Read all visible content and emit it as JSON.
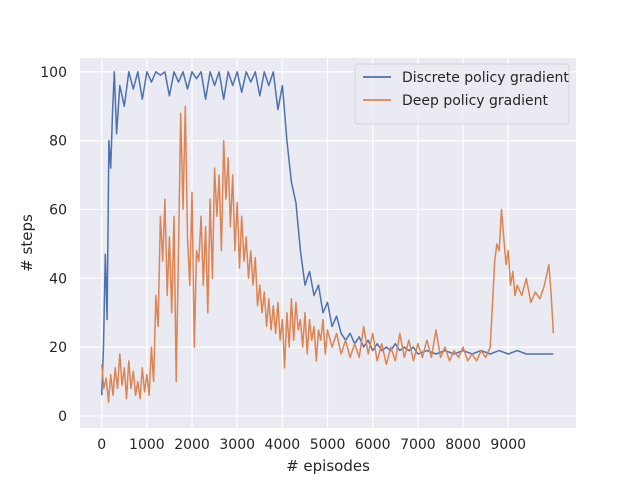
{
  "chart_data": {
    "type": "line",
    "xlabel": "# episodes",
    "ylabel": "# steps",
    "xlim": [
      -480,
      10500
    ],
    "ylim": [
      -3.5,
      104
    ],
    "x_ticks": [
      0,
      1000,
      2000,
      3000,
      4000,
      5000,
      6000,
      7000,
      8000,
      9000
    ],
    "y_ticks": [
      0,
      20,
      40,
      60,
      80,
      100
    ],
    "grid": true,
    "legend_position": "top-right",
    "series": [
      {
        "name": "Discrete policy gradient",
        "color": "#4c72b0",
        "points": [
          [
            0,
            6
          ],
          [
            40,
            20
          ],
          [
            80,
            47
          ],
          [
            120,
            28
          ],
          [
            160,
            80
          ],
          [
            200,
            72
          ],
          [
            240,
            88
          ],
          [
            280,
            100
          ],
          [
            330,
            82
          ],
          [
            400,
            96
          ],
          [
            500,
            90
          ],
          [
            600,
            100
          ],
          [
            700,
            95
          ],
          [
            800,
            100
          ],
          [
            900,
            92
          ],
          [
            1000,
            100
          ],
          [
            1100,
            97
          ],
          [
            1200,
            100
          ],
          [
            1300,
            99
          ],
          [
            1400,
            100
          ],
          [
            1500,
            93
          ],
          [
            1600,
            100
          ],
          [
            1700,
            97
          ],
          [
            1800,
            100
          ],
          [
            1900,
            95
          ],
          [
            2000,
            100
          ],
          [
            2100,
            98
          ],
          [
            2200,
            100
          ],
          [
            2300,
            92
          ],
          [
            2400,
            100
          ],
          [
            2500,
            96
          ],
          [
            2600,
            100
          ],
          [
            2700,
            92
          ],
          [
            2800,
            100
          ],
          [
            2900,
            96
          ],
          [
            3000,
            100
          ],
          [
            3100,
            94
          ],
          [
            3200,
            100
          ],
          [
            3300,
            97
          ],
          [
            3400,
            100
          ],
          [
            3500,
            93
          ],
          [
            3600,
            100
          ],
          [
            3700,
            96
          ],
          [
            3800,
            100
          ],
          [
            3900,
            89
          ],
          [
            4000,
            96
          ],
          [
            4100,
            80
          ],
          [
            4200,
            68
          ],
          [
            4300,
            62
          ],
          [
            4400,
            48
          ],
          [
            4500,
            38
          ],
          [
            4600,
            42
          ],
          [
            4700,
            35
          ],
          [
            4800,
            38
          ],
          [
            4900,
            30
          ],
          [
            5000,
            33
          ],
          [
            5100,
            26
          ],
          [
            5200,
            29
          ],
          [
            5300,
            24
          ],
          [
            5400,
            22
          ],
          [
            5500,
            24
          ],
          [
            5600,
            21
          ],
          [
            5700,
            23
          ],
          [
            5800,
            20
          ],
          [
            5900,
            22
          ],
          [
            6000,
            19
          ],
          [
            6100,
            21
          ],
          [
            6200,
            19
          ],
          [
            6300,
            20
          ],
          [
            6400,
            19
          ],
          [
            6500,
            21
          ],
          [
            6600,
            19
          ],
          [
            6700,
            20
          ],
          [
            6800,
            19
          ],
          [
            6900,
            20
          ],
          [
            7000,
            18
          ],
          [
            7200,
            19
          ],
          [
            7400,
            18
          ],
          [
            7600,
            19
          ],
          [
            7800,
            18
          ],
          [
            8000,
            19
          ],
          [
            8200,
            18
          ],
          [
            8400,
            19
          ],
          [
            8600,
            18
          ],
          [
            8800,
            19
          ],
          [
            9000,
            18
          ],
          [
            9200,
            19
          ],
          [
            9400,
            18
          ],
          [
            9600,
            18
          ],
          [
            9800,
            18
          ],
          [
            10000,
            18
          ]
        ]
      },
      {
        "name": "Deep policy gradient",
        "color": "#dd8452",
        "points": [
          [
            0,
            15
          ],
          [
            50,
            8
          ],
          [
            100,
            11
          ],
          [
            150,
            4
          ],
          [
            200,
            12
          ],
          [
            250,
            6
          ],
          [
            300,
            14
          ],
          [
            350,
            8
          ],
          [
            400,
            18
          ],
          [
            450,
            9
          ],
          [
            500,
            14
          ],
          [
            550,
            5
          ],
          [
            600,
            16
          ],
          [
            650,
            8
          ],
          [
            700,
            13
          ],
          [
            750,
            6
          ],
          [
            800,
            10
          ],
          [
            850,
            5
          ],
          [
            900,
            14
          ],
          [
            950,
            7
          ],
          [
            1000,
            12
          ],
          [
            1050,
            6
          ],
          [
            1100,
            20
          ],
          [
            1150,
            10
          ],
          [
            1200,
            35
          ],
          [
            1250,
            26
          ],
          [
            1300,
            58
          ],
          [
            1350,
            45
          ],
          [
            1400,
            63
          ],
          [
            1450,
            35
          ],
          [
            1500,
            52
          ],
          [
            1550,
            30
          ],
          [
            1600,
            58
          ],
          [
            1650,
            10
          ],
          [
            1700,
            48
          ],
          [
            1750,
            88
          ],
          [
            1800,
            60
          ],
          [
            1850,
            90
          ],
          [
            1900,
            52
          ],
          [
            1950,
            38
          ],
          [
            2000,
            65
          ],
          [
            2050,
            20
          ],
          [
            2100,
            48
          ],
          [
            2150,
            45
          ],
          [
            2200,
            58
          ],
          [
            2250,
            38
          ],
          [
            2300,
            55
          ],
          [
            2350,
            30
          ],
          [
            2400,
            63
          ],
          [
            2450,
            40
          ],
          [
            2500,
            72
          ],
          [
            2550,
            58
          ],
          [
            2600,
            70
          ],
          [
            2650,
            48
          ],
          [
            2700,
            80
          ],
          [
            2750,
            63
          ],
          [
            2800,
            75
          ],
          [
            2850,
            55
          ],
          [
            2900,
            70
          ],
          [
            2950,
            48
          ],
          [
            3000,
            62
          ],
          [
            3050,
            43
          ],
          [
            3100,
            58
          ],
          [
            3150,
            45
          ],
          [
            3200,
            52
          ],
          [
            3250,
            40
          ],
          [
            3300,
            48
          ],
          [
            3350,
            38
          ],
          [
            3400,
            46
          ],
          [
            3450,
            32
          ],
          [
            3500,
            38
          ],
          [
            3550,
            30
          ],
          [
            3600,
            36
          ],
          [
            3650,
            26
          ],
          [
            3700,
            34
          ],
          [
            3750,
            25
          ],
          [
            3800,
            32
          ],
          [
            3850,
            24
          ],
          [
            3900,
            33
          ],
          [
            3950,
            22
          ],
          [
            4000,
            28
          ],
          [
            4050,
            14
          ],
          [
            4100,
            30
          ],
          [
            4150,
            20
          ],
          [
            4200,
            34
          ],
          [
            4250,
            22
          ],
          [
            4300,
            33
          ],
          [
            4350,
            25
          ],
          [
            4400,
            28
          ],
          [
            4450,
            20
          ],
          [
            4500,
            30
          ],
          [
            4550,
            18
          ],
          [
            4600,
            28
          ],
          [
            4650,
            22
          ],
          [
            4700,
            26
          ],
          [
            4750,
            16
          ],
          [
            4800,
            25
          ],
          [
            4850,
            22
          ],
          [
            4900,
            28
          ],
          [
            4950,
            18
          ],
          [
            5000,
            25
          ],
          [
            5100,
            20
          ],
          [
            5200,
            24
          ],
          [
            5300,
            18
          ],
          [
            5400,
            22
          ],
          [
            5500,
            17
          ],
          [
            5600,
            21
          ],
          [
            5700,
            17
          ],
          [
            5800,
            26
          ],
          [
            5900,
            18
          ],
          [
            6000,
            24
          ],
          [
            6100,
            16
          ],
          [
            6200,
            21
          ],
          [
            6300,
            15
          ],
          [
            6400,
            20
          ],
          [
            6500,
            16
          ],
          [
            6600,
            24
          ],
          [
            6700,
            17
          ],
          [
            6800,
            22
          ],
          [
            6900,
            16
          ],
          [
            7000,
            21
          ],
          [
            7100,
            17
          ],
          [
            7200,
            22
          ],
          [
            7300,
            17
          ],
          [
            7400,
            25
          ],
          [
            7500,
            17
          ],
          [
            7600,
            20
          ],
          [
            7700,
            16
          ],
          [
            7800,
            19
          ],
          [
            7900,
            17
          ],
          [
            8000,
            20
          ],
          [
            8100,
            16
          ],
          [
            8200,
            18
          ],
          [
            8300,
            16
          ],
          [
            8400,
            19
          ],
          [
            8500,
            17
          ],
          [
            8600,
            20
          ],
          [
            8650,
            32
          ],
          [
            8700,
            45
          ],
          [
            8750,
            50
          ],
          [
            8800,
            48
          ],
          [
            8850,
            60
          ],
          [
            8900,
            52
          ],
          [
            8950,
            44
          ],
          [
            9000,
            48
          ],
          [
            9050,
            38
          ],
          [
            9100,
            42
          ],
          [
            9150,
            35
          ],
          [
            9200,
            38
          ],
          [
            9300,
            35
          ],
          [
            9400,
            40
          ],
          [
            9500,
            33
          ],
          [
            9600,
            36
          ],
          [
            9700,
            34
          ],
          [
            9800,
            38
          ],
          [
            9900,
            44
          ],
          [
            9950,
            35
          ],
          [
            10000,
            24
          ]
        ]
      }
    ]
  }
}
